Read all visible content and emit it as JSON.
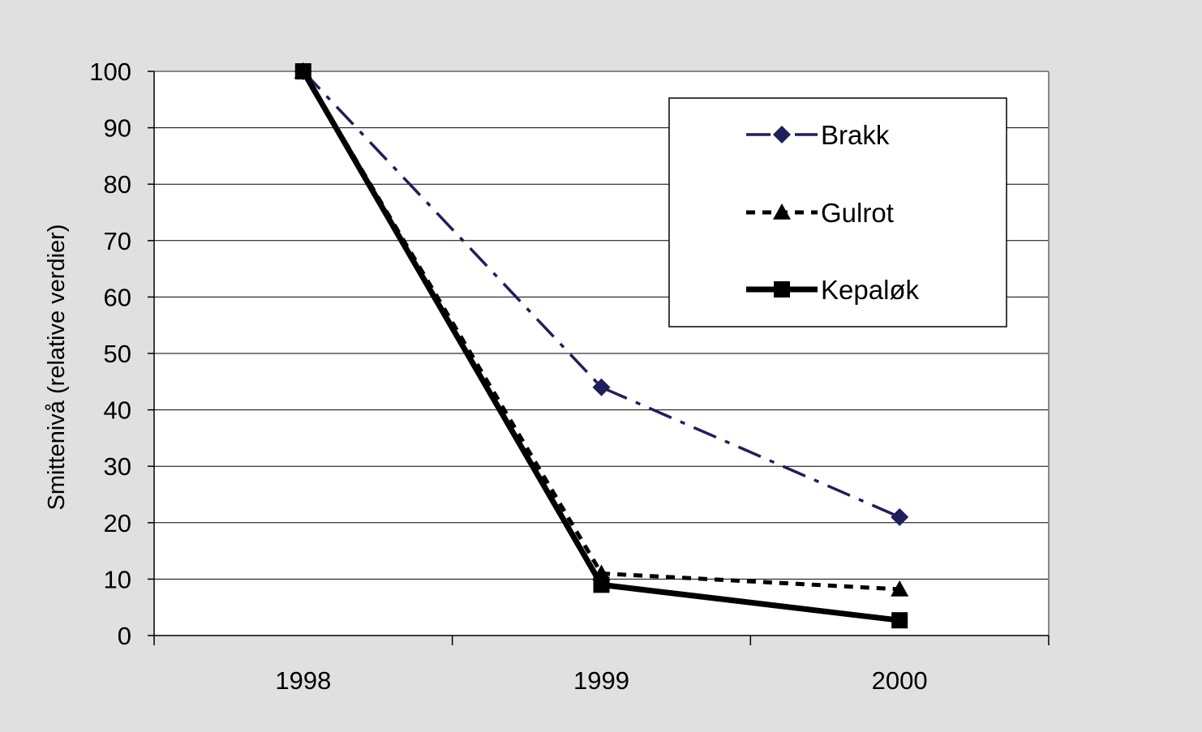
{
  "chart_data": {
    "type": "line",
    "categories": [
      "1998",
      "1999",
      "2000"
    ],
    "ylabel": "Smittenivå (relative verdier)",
    "ylim": [
      0,
      100
    ],
    "yticks": [
      "0",
      "10",
      "20",
      "30",
      "40",
      "50",
      "60",
      "70",
      "80",
      "90",
      "100"
    ],
    "grid": true,
    "legend_position": "top-right",
    "series": [
      {
        "name": "Brakk",
        "values": [
          100,
          44,
          21
        ],
        "color": "#1f1f5c",
        "marker": "diamond",
        "line": "dash-dot"
      },
      {
        "name": "Gulrot",
        "values": [
          100,
          11,
          8.2
        ],
        "color": "#000000",
        "marker": "triangle",
        "line": "dotted"
      },
      {
        "name": "Kepaløk",
        "values": [
          100,
          9,
          2.7
        ],
        "color": "#000000",
        "marker": "square",
        "line": "solid"
      }
    ]
  }
}
